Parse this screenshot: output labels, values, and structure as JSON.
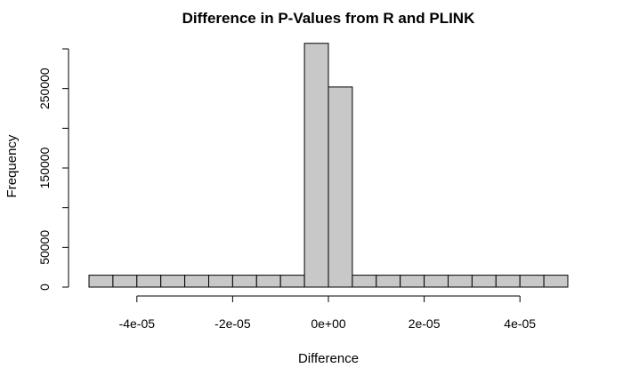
{
  "chart_data": {
    "type": "bar",
    "title": "Difference in P-Values from R and PLINK",
    "xlabel": "Difference",
    "ylabel": "Frequency",
    "xlim": [
      -5e-05,
      5e-05
    ],
    "ylim": [
      0,
      300000
    ],
    "bin_width": 5e-06,
    "bins": [
      {
        "x0": -5e-05,
        "x1": -4.5e-05,
        "count": 15000
      },
      {
        "x0": -4.5e-05,
        "x1": -4e-05,
        "count": 15000
      },
      {
        "x0": -4e-05,
        "x1": -3.5e-05,
        "count": 15000
      },
      {
        "x0": -3.5e-05,
        "x1": -3e-05,
        "count": 15000
      },
      {
        "x0": -3e-05,
        "x1": -2.5e-05,
        "count": 15000
      },
      {
        "x0": -2.5e-05,
        "x1": -2e-05,
        "count": 15000
      },
      {
        "x0": -2e-05,
        "x1": -1.5e-05,
        "count": 15000
      },
      {
        "x0": -1.5e-05,
        "x1": -1e-05,
        "count": 15000
      },
      {
        "x0": -1e-05,
        "x1": -5e-06,
        "count": 15000
      },
      {
        "x0": -5e-06,
        "x1": 0,
        "count": 307000
      },
      {
        "x0": 0,
        "x1": 5e-06,
        "count": 252000
      },
      {
        "x0": 5e-06,
        "x1": 1e-05,
        "count": 15000
      },
      {
        "x0": 1e-05,
        "x1": 1.5e-05,
        "count": 15000
      },
      {
        "x0": 1.5e-05,
        "x1": 2e-05,
        "count": 15000
      },
      {
        "x0": 2e-05,
        "x1": 2.5e-05,
        "count": 15000
      },
      {
        "x0": 2.5e-05,
        "x1": 3e-05,
        "count": 15000
      },
      {
        "x0": 3e-05,
        "x1": 3.5e-05,
        "count": 15000
      },
      {
        "x0": 3.5e-05,
        "x1": 4e-05,
        "count": 15000
      },
      {
        "x0": 4e-05,
        "x1": 4.5e-05,
        "count": 15000
      },
      {
        "x0": 4.5e-05,
        "x1": 5e-05,
        "count": 15000
      }
    ],
    "x_ticks": [
      {
        "value": -4e-05,
        "label": "-4e-05"
      },
      {
        "value": -2e-05,
        "label": "-2e-05"
      },
      {
        "value": 0,
        "label": "0e+00"
      },
      {
        "value": 2e-05,
        "label": "2e-05"
      },
      {
        "value": 4e-05,
        "label": "4e-05"
      }
    ],
    "y_ticks": [
      {
        "value": 0,
        "label": "0"
      },
      {
        "value": 50000,
        "label": "50000"
      },
      {
        "value": 100000,
        "label": ""
      },
      {
        "value": 150000,
        "label": "150000"
      },
      {
        "value": 200000,
        "label": ""
      },
      {
        "value": 250000,
        "label": "250000"
      },
      {
        "value": 300000,
        "label": ""
      }
    ],
    "grid": false,
    "colors": {
      "bar_fill": "#c8c8c8",
      "bar_stroke": "#000000"
    }
  }
}
